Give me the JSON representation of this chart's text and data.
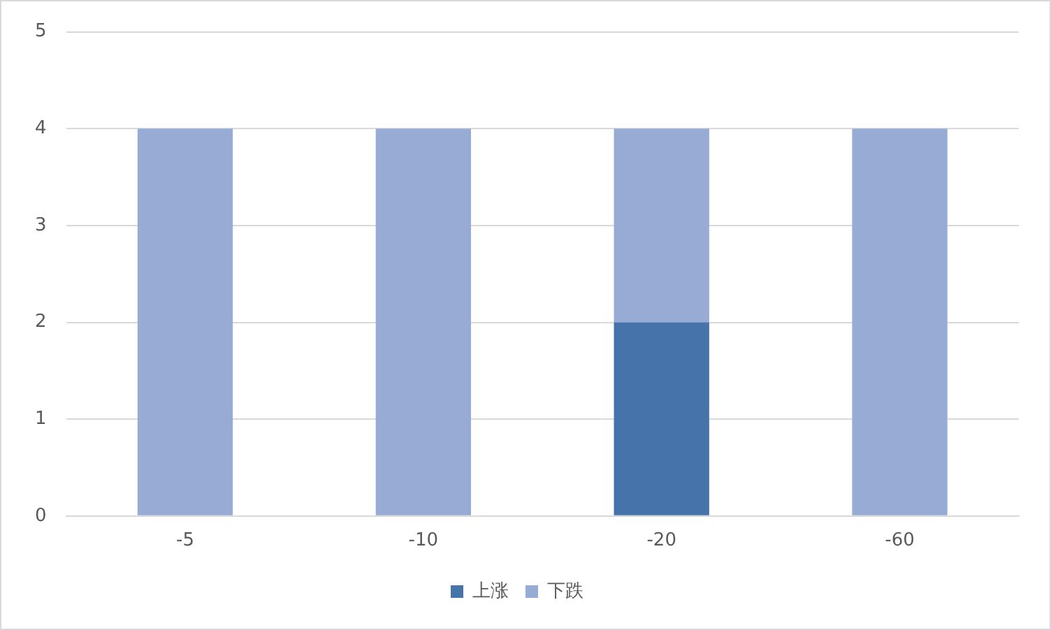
{
  "chart_data": {
    "type": "bar",
    "stacked": true,
    "categories": [
      "-5",
      "-10",
      "-20",
      "-60"
    ],
    "series": [
      {
        "name": "上涨",
        "color": "#4674aa",
        "values": [
          0,
          0,
          2,
          0
        ]
      },
      {
        "name": "下跌",
        "color": "#97abd4",
        "values": [
          4,
          4,
          2,
          4
        ]
      }
    ],
    "ylim": [
      0,
      5
    ],
    "yticks": [
      0,
      1,
      2,
      3,
      4,
      5
    ],
    "grid": "y",
    "legend": "bottom"
  }
}
